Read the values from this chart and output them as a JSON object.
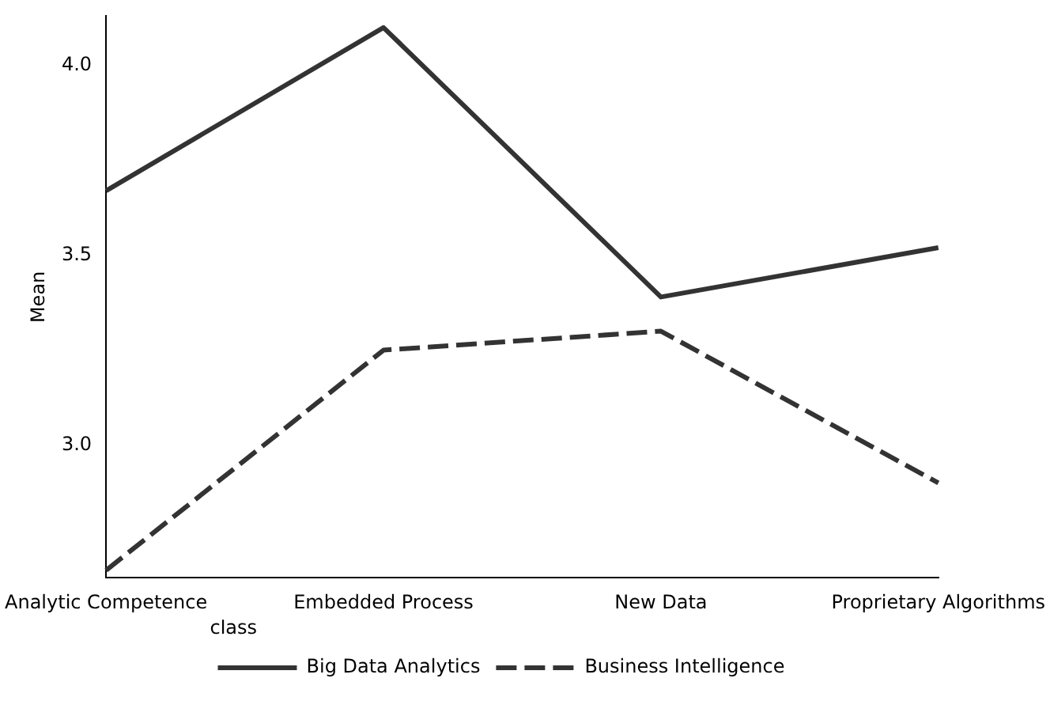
{
  "chart_data": {
    "type": "line",
    "ylabel": "Mean",
    "legend_title": "class",
    "legend": "bottom",
    "marker": "none",
    "grid": false,
    "categories": [
      "Analytic Competence",
      "Embedded Process",
      "New Data",
      "Proprietary Algorithms"
    ],
    "ylim": [
      2.65,
      4.13
    ],
    "yticks": [
      {
        "value": 3.0,
        "label": "3.0"
      },
      {
        "value": 3.5,
        "label": "3.5"
      },
      {
        "value": 4.0,
        "label": "4.0"
      }
    ],
    "series": [
      {
        "name": "Big Data Analytics",
        "color": "#333333",
        "line_style": "solid",
        "values": [
          3.67,
          4.1,
          3.39,
          3.52
        ]
      },
      {
        "name": "Business Intelligence",
        "color": "#333333",
        "line_style": "dashed",
        "values": [
          2.67,
          3.25,
          3.3,
          2.9
        ]
      }
    ]
  }
}
